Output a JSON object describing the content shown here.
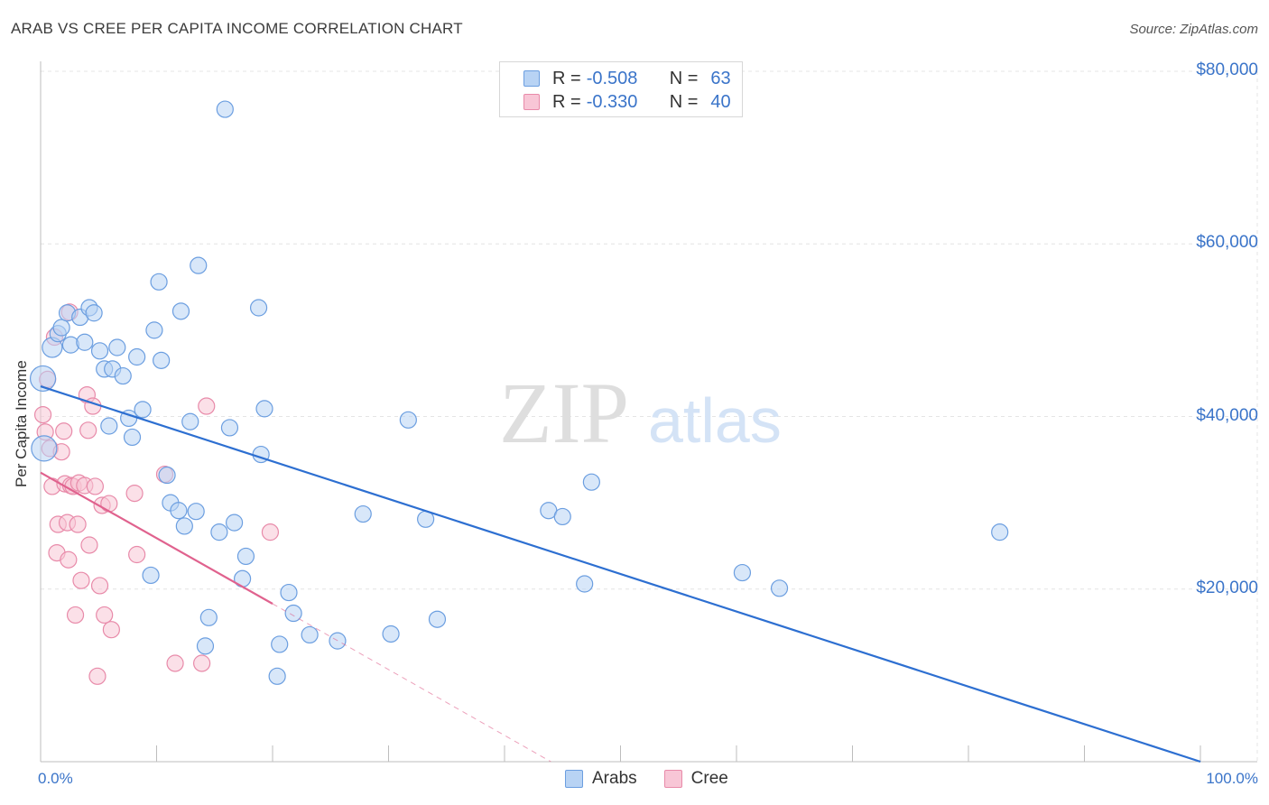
{
  "header": {
    "title": "ARAB VS CREE PER CAPITA INCOME CORRELATION CHART",
    "source": "Source: ZipAtlas.com"
  },
  "watermark": {
    "zip": "ZIP",
    "atlas": "atlas"
  },
  "colors": {
    "arab_fill": "#b8d3f4",
    "arab_stroke": "#6b9ee0",
    "arab_line": "#2d6fd1",
    "cree_fill": "#f8c6d6",
    "cree_stroke": "#e88aa9",
    "cree_line": "#e0628e",
    "grid": "#e4e4e4",
    "tick_text": "#3a74c9"
  },
  "legend": {
    "arabs": {
      "r_label": "R =",
      "r_value": "-0.508",
      "n_label": "N =",
      "n_value": "63"
    },
    "cree": {
      "r_label": "R =",
      "r_value": "-0.330",
      "n_label": "N =",
      "n_value": "40"
    }
  },
  "bottom_legend": {
    "arabs": "Arabs",
    "cree": "Cree"
  },
  "chart_data": {
    "type": "scatter",
    "title": "ARAB VS CREE PER CAPITA INCOME CORRELATION CHART",
    "xlabel": "",
    "ylabel": "Per Capita Income",
    "xlim": [
      0,
      100
    ],
    "ylim": [
      0,
      80000
    ],
    "x_tick_labels": {
      "min": "0.0%",
      "max": "100.0%"
    },
    "y_ticks": [
      {
        "value": 20000,
        "label": "$20,000"
      },
      {
        "value": 40000,
        "label": "$40,000"
      },
      {
        "value": 60000,
        "label": "$60,000"
      },
      {
        "value": 80000,
        "label": "$80,000"
      }
    ],
    "grid": true,
    "legend_position": "top-center",
    "series": [
      {
        "name": "Arabs",
        "regression": {
          "x": [
            0,
            100
          ],
          "y": [
            43500,
            0
          ]
        },
        "points": [
          [
            0.2,
            44400,
            14
          ],
          [
            0.3,
            36300,
            14
          ],
          [
            1.0,
            48000,
            11
          ],
          [
            1.5,
            49600,
            9
          ],
          [
            1.8,
            50300,
            9
          ],
          [
            2.3,
            52000,
            9
          ],
          [
            2.6,
            48300,
            9
          ],
          [
            3.4,
            51500,
            9
          ],
          [
            3.8,
            48600,
            9
          ],
          [
            4.2,
            52600,
            9
          ],
          [
            4.6,
            52000,
            9
          ],
          [
            5.1,
            47600,
            9
          ],
          [
            5.5,
            45500,
            9
          ],
          [
            5.9,
            38900,
            9
          ],
          [
            6.2,
            45500,
            9
          ],
          [
            6.6,
            48000,
            9
          ],
          [
            7.1,
            44700,
            9
          ],
          [
            7.6,
            39800,
            9
          ],
          [
            7.9,
            37600,
            9
          ],
          [
            8.3,
            46900,
            9
          ],
          [
            8.8,
            40800,
            9
          ],
          [
            9.5,
            21600,
            9
          ],
          [
            9.8,
            50000,
            9
          ],
          [
            10.2,
            55600,
            9
          ],
          [
            10.4,
            46500,
            9
          ],
          [
            10.9,
            33200,
            9
          ],
          [
            11.2,
            30000,
            9
          ],
          [
            11.9,
            29100,
            9
          ],
          [
            12.1,
            52200,
            9
          ],
          [
            12.4,
            27300,
            9
          ],
          [
            12.9,
            39400,
            9
          ],
          [
            13.4,
            29000,
            9
          ],
          [
            13.6,
            57500,
            9
          ],
          [
            14.2,
            13400,
            9
          ],
          [
            14.5,
            16700,
            9
          ],
          [
            15.4,
            26600,
            9
          ],
          [
            15.9,
            75600,
            9
          ],
          [
            16.3,
            38700,
            9
          ],
          [
            16.7,
            27700,
            9
          ],
          [
            17.4,
            21200,
            9
          ],
          [
            17.7,
            23800,
            9
          ],
          [
            18.8,
            52600,
            9
          ],
          [
            19.0,
            35600,
            9
          ],
          [
            19.3,
            40900,
            9
          ],
          [
            20.4,
            9900,
            9
          ],
          [
            20.6,
            13600,
            9
          ],
          [
            21.4,
            19600,
            9
          ],
          [
            21.8,
            17200,
            9
          ],
          [
            23.2,
            14700,
            9
          ],
          [
            25.6,
            14000,
            9
          ],
          [
            27.8,
            28700,
            9
          ],
          [
            30.2,
            14800,
            9
          ],
          [
            31.7,
            39600,
            9
          ],
          [
            33.2,
            28100,
            9
          ],
          [
            34.2,
            16500,
            9
          ],
          [
            43.8,
            29100,
            9
          ],
          [
            45.0,
            28400,
            9
          ],
          [
            46.9,
            20600,
            9
          ],
          [
            47.5,
            32400,
            9
          ],
          [
            60.5,
            21900,
            9
          ],
          [
            63.7,
            20100,
            9
          ],
          [
            82.7,
            26600,
            9
          ]
        ]
      },
      {
        "name": "Cree",
        "regression": {
          "x": [
            0,
            20
          ],
          "y": [
            33500,
            18300
          ]
        },
        "regression_extended": {
          "x": [
            20,
            44
          ],
          "y": [
            18300,
            0
          ]
        },
        "points": [
          [
            0.2,
            40200,
            9
          ],
          [
            0.4,
            38200,
            9
          ],
          [
            0.6,
            44300,
            9
          ],
          [
            0.8,
            36300,
            9
          ],
          [
            1.0,
            31900,
            9
          ],
          [
            1.2,
            49200,
            9
          ],
          [
            1.4,
            24200,
            9
          ],
          [
            1.5,
            27500,
            9
          ],
          [
            1.8,
            35900,
            9
          ],
          [
            2.0,
            38300,
            9
          ],
          [
            2.1,
            32200,
            9
          ],
          [
            2.3,
            27700,
            9
          ],
          [
            2.4,
            23400,
            9
          ],
          [
            2.5,
            52100,
            9
          ],
          [
            2.6,
            32000,
            9
          ],
          [
            2.8,
            31900,
            9
          ],
          [
            3.0,
            17000,
            9
          ],
          [
            3.2,
            27500,
            9
          ],
          [
            3.3,
            32300,
            9
          ],
          [
            3.5,
            21000,
            9
          ],
          [
            3.8,
            32000,
            9
          ],
          [
            4.0,
            42500,
            9
          ],
          [
            4.1,
            38400,
            9
          ],
          [
            4.2,
            25100,
            9
          ],
          [
            4.5,
            41200,
            9
          ],
          [
            4.7,
            31900,
            9
          ],
          [
            4.9,
            9900,
            9
          ],
          [
            5.1,
            20400,
            9
          ],
          [
            5.3,
            29700,
            9
          ],
          [
            5.5,
            17000,
            9
          ],
          [
            5.9,
            29900,
            9
          ],
          [
            6.1,
            15300,
            9
          ],
          [
            8.1,
            31100,
            9
          ],
          [
            8.3,
            24000,
            9
          ],
          [
            10.7,
            33300,
            9
          ],
          [
            11.6,
            11400,
            9
          ],
          [
            13.9,
            11400,
            9
          ],
          [
            14.3,
            41200,
            9
          ],
          [
            19.8,
            26600,
            9
          ]
        ]
      }
    ]
  }
}
